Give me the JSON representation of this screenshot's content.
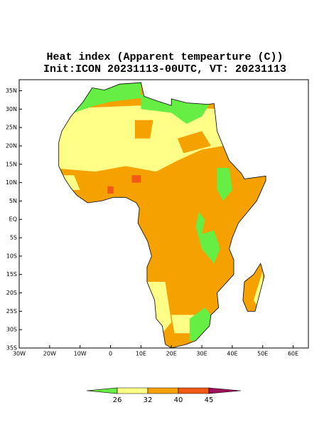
{
  "map": {
    "title": "Heat index (Apparent tempearture (C))",
    "subtitle": "Init:ICON 20231113-00UTC, VT: 20231113",
    "lonlim": [
      -30,
      65
    ],
    "latlim": [
      -35,
      38
    ],
    "lon_ticks": [
      {
        "value": -30,
        "label": "30W"
      },
      {
        "value": -20,
        "label": "20W"
      },
      {
        "value": -10,
        "label": "10W"
      },
      0,
      {
        "value": 10,
        "label": "10E"
      },
      {
        "value": 20,
        "label": "20E"
      },
      {
        "value": 30,
        "label": "30E"
      },
      {
        "value": 40,
        "label": "40E"
      },
      {
        "value": 50,
        "label": "50E"
      },
      {
        "value": 60,
        "label": "60E"
      }
    ],
    "lat_ticks": [
      {
        "value": 35,
        "label": "35N"
      },
      {
        "value": 30,
        "label": "30N"
      },
      {
        "value": 25,
        "label": "25N"
      },
      {
        "value": 20,
        "label": "20N"
      },
      {
        "value": 15,
        "label": "15N"
      },
      {
        "value": 10,
        "label": "10N"
      },
      {
        "value": 5,
        "label": "5N"
      },
      {
        "value": 0,
        "label": "EQ"
      },
      {
        "value": -5,
        "label": "5S"
      },
      {
        "value": -10,
        "label": "10S"
      },
      {
        "value": -15,
        "label": "15S"
      },
      {
        "value": -20,
        "label": "20S"
      },
      {
        "value": -25,
        "label": "25S"
      },
      {
        "value": -30,
        "label": "30S"
      },
      {
        "value": -35,
        "label": "35S"
      }
    ],
    "colorbar": {
      "ticks": [
        26,
        32,
        40,
        45
      ],
      "colors": [
        "#66ee44",
        "#ffff88",
        "#f5a200",
        "#f05a14",
        "#a0105a"
      ]
    }
  }
}
